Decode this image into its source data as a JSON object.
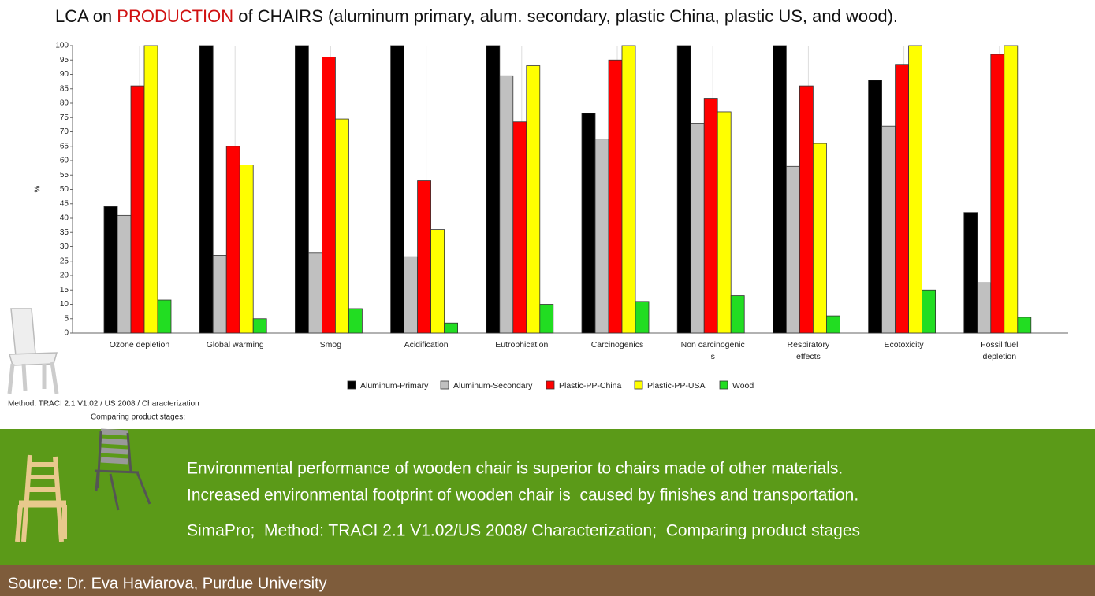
{
  "slide": {
    "title": [
      "LCA on ",
      "PRODUCTION",
      " of CHAIRS (aluminum primary, alum. secondary, plastic China, plastic US, and wood)."
    ],
    "method": "Method: TRACI 2.1 V1.02 / US 2008 / Characterization",
    "stages": "Comparing product stages;",
    "findings": [
      "Environmental performance of wooden chair is superior to chairs made of other materials.",
      "Increased environmental footprint of wooden chair is  caused by finishes and transportation.",
      "SimaPro;  Method: TRACI 2.1 V1.02/US 2008/ Characterization;  Comparing product stages"
    ],
    "source": "Source: Dr. Eva Haviarova, Purdue University"
  },
  "chart_data": {
    "type": "bar",
    "y_label": "%",
    "categories": [
      "Ozone depletion",
      "Global warming",
      "Smog",
      "Acidification",
      "Eutrophication",
      "Carcinogenics",
      "Non carcinogenic\ns",
      "Respiratory\neffects",
      "Ecotoxicity",
      "Fossil fuel\ndepletion"
    ],
    "series": [
      {
        "name": "Aluminum-Primary",
        "color": "#000000",
        "values": [
          44,
          100,
          100,
          100,
          100,
          76.5,
          100,
          100,
          88,
          42
        ]
      },
      {
        "name": "Aluminum-Secondary",
        "color": "#c0c0c0",
        "values": [
          41,
          27,
          28,
          26.5,
          89.5,
          67.5,
          73,
          58,
          72,
          17.5
        ]
      },
      {
        "name": "Plastic-PP-China",
        "color": "#ff0000",
        "values": [
          86,
          65,
          96,
          53,
          73.5,
          95,
          81.5,
          86,
          93.5,
          97
        ]
      },
      {
        "name": "Plastic-PP-USA",
        "color": "#ffff00",
        "values": [
          100,
          58.5,
          74.5,
          36,
          93,
          100,
          77,
          66,
          100,
          100
        ]
      },
      {
        "name": "Wood",
        "color": "#22dd22",
        "values": [
          11.5,
          5,
          8.5,
          3.5,
          10,
          11,
          13,
          6,
          15,
          5.5
        ]
      }
    ],
    "ylim": [
      0,
      100
    ],
    "yticks": [
      0,
      5,
      10,
      15,
      20,
      25,
      30,
      35,
      40,
      45,
      50,
      55,
      60,
      65,
      70,
      75,
      80,
      85,
      90,
      95,
      100
    ],
    "grid": true
  }
}
